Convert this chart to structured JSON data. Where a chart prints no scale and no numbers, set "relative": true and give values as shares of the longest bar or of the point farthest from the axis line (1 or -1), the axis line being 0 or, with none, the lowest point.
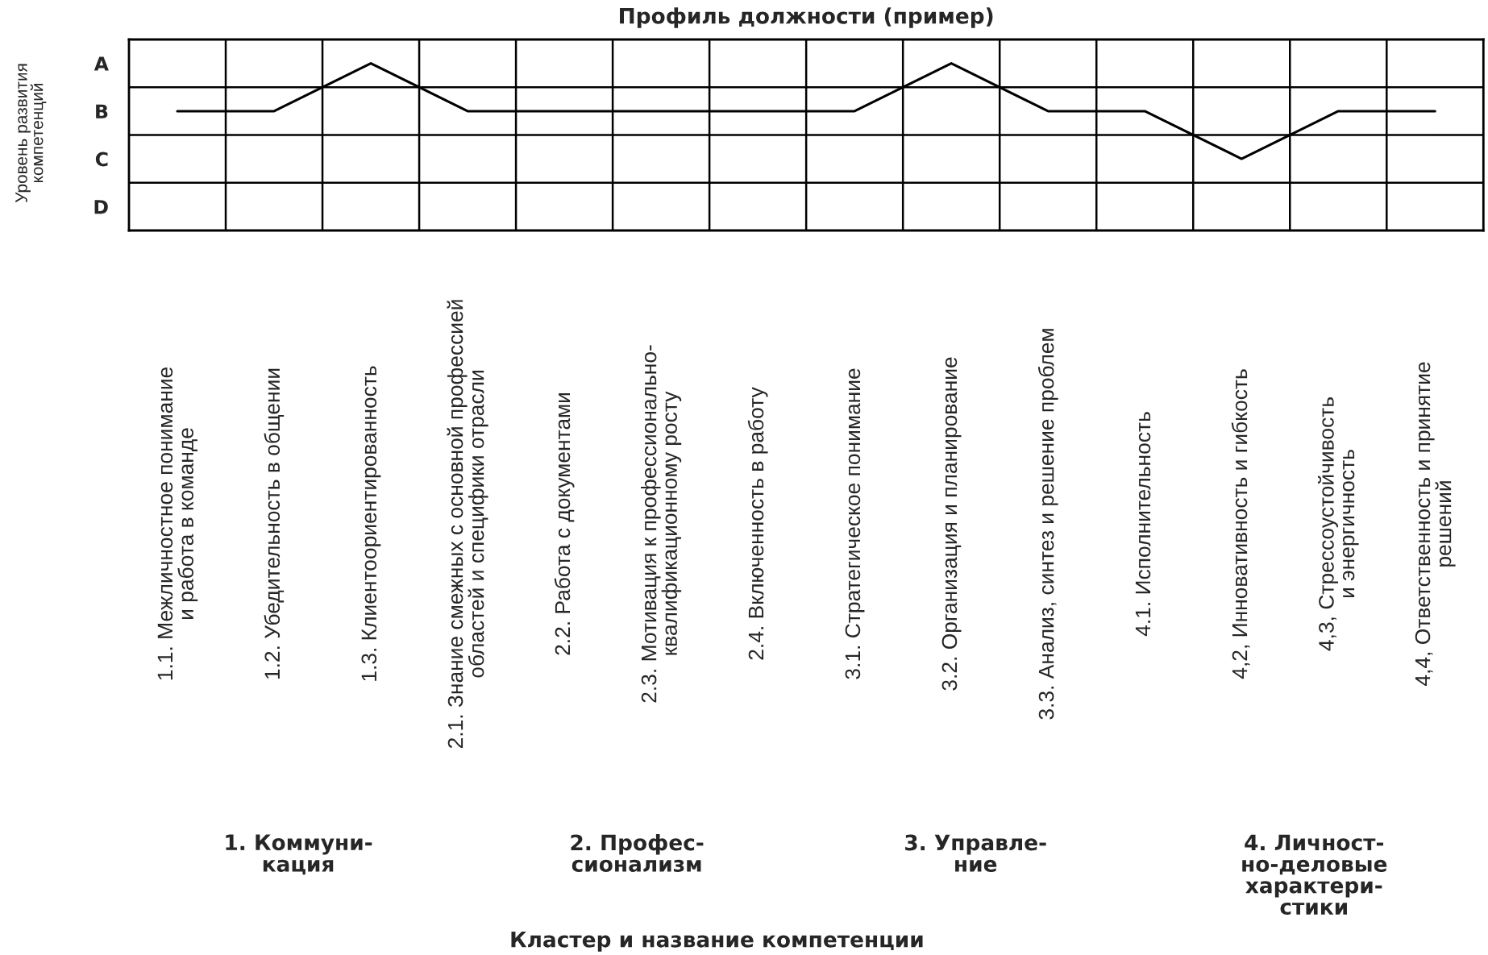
{
  "chart_data": {
    "type": "line",
    "title": "Профиль должности (пример)",
    "ylabel": "Уровень развития\nкомпетенций",
    "categories": [
      "1.1. Межличностное понимание\nи работа в команде",
      "1.2. Убедительность в общении",
      "1.3. Клиентоориентированность",
      "2.1. Знание смежных с основной профессией\nобластей и специфики отрасли",
      "2.2. Работа с документами",
      "2.3. Мотивация к профессионально-\nквалификационному росту",
      "2.4. Включенность в работу",
      "3.1. Стратегическое понимание",
      "3.2. Организация и планирование",
      "3.3. Анализ, синтез и решение проблем",
      "4.1. Исполнительность",
      "4,2, Инновативность и гибкость",
      "4,3, Стрессоустойчивость\nи энергичность",
      "4,4, Ответственность и принятие\nрешений"
    ],
    "series": [
      {
        "color": "#000000",
        "values": [
          0.714,
          0.714,
          1,
          0.714,
          0.714,
          0.714,
          0.714,
          0.714,
          1,
          0.714,
          0.714,
          0.429,
          0.714,
          0.714
        ]
      }
    ],
    "relative": true,
    "y_categories": [
      "A",
      "B",
      "C",
      "D"
    ],
    "grid": true,
    "marker": "none",
    "line_style": "solid",
    "annotations": [
      "1. Коммуни-\nкация",
      "2. Профес-\nсионализм",
      "3. Управле-\nние",
      "4. Личност-\nно-деловые\nхарактери-\nстики",
      "Кластер и название компетенции"
    ]
  }
}
